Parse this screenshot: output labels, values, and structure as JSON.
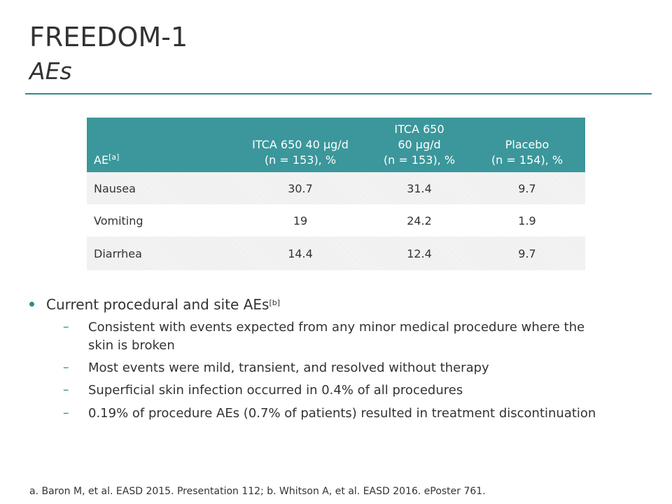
{
  "header": {
    "title": "FREEDOM-1",
    "subtitle": "AEs"
  },
  "table": {
    "columns": [
      {
        "lines": [
          "AE"
        ],
        "sup": "[a]"
      },
      {
        "lines": [
          "ITCA 650 40 µg/d",
          "(n = 153), %"
        ]
      },
      {
        "lines": [
          "ITCA 650",
          "60 µg/d",
          "(n = 153), %"
        ]
      },
      {
        "lines": [
          "Placebo",
          "(n = 154), %"
        ]
      }
    ],
    "rows": [
      [
        "Nausea",
        "30.7",
        "31.4",
        "9.7"
      ],
      [
        "Vomiting",
        "19",
        "24.2",
        "1.9"
      ],
      [
        "Diarrhea",
        "14.4",
        "12.4",
        "9.7"
      ]
    ]
  },
  "bullets": [
    {
      "text": "Current procedural and site AEs",
      "sup": "[b]",
      "items": [
        [
          "Consistent with events expected from any minor medical procedure where the",
          "skin is broken"
        ],
        [
          "Most events were mild, transient, and resolved without therapy"
        ],
        [
          "Superficial skin infection occurred in 0.4% of all procedures"
        ],
        [
          "0.19% of procedure AEs (0.7% of patients) resulted in treatment discontinuation"
        ]
      ]
    }
  ],
  "footnote": "a. Baron M, et al. EASD 2015. Presentation 112; b. Whitson A, et al. EASD 2016. ePoster 761."
}
